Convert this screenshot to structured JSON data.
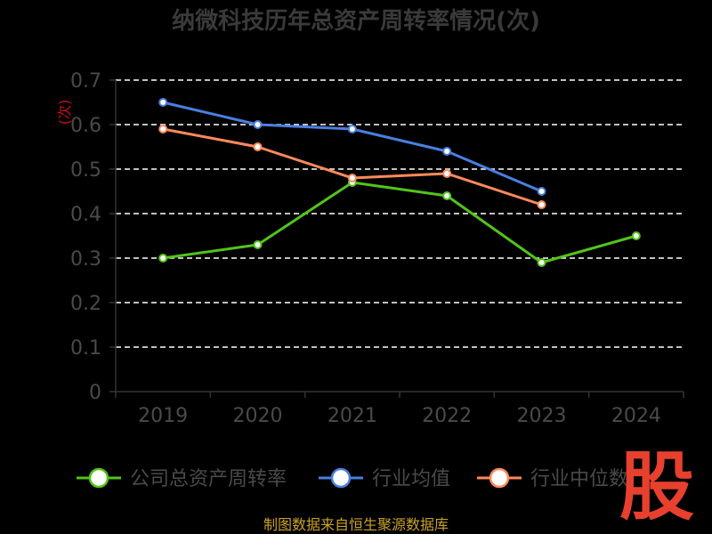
{
  "chart_data": {
    "type": "line",
    "title": "纳微科技历年总资产周转率情况(次)",
    "ylabel": "(次)",
    "xlabel": "",
    "categories": [
      "2019",
      "2020",
      "2021",
      "2022",
      "2023",
      "2024"
    ],
    "ylim": [
      0,
      0.7
    ],
    "yticks": [
      "0",
      "0.1",
      "0.2",
      "0.3",
      "0.4",
      "0.5",
      "0.6",
      "0.7"
    ],
    "grid": true,
    "legend_position": "bottom",
    "series": [
      {
        "name": "公司总资产周转率",
        "color": "#52c41a",
        "values": [
          0.3,
          0.33,
          0.47,
          0.44,
          0.29,
          0.35
        ]
      },
      {
        "name": "行业均值",
        "color": "#4a7fe0",
        "values": [
          0.65,
          0.6,
          0.59,
          0.54,
          0.45,
          null
        ]
      },
      {
        "name": "行业中位数",
        "color": "#ff8a5c",
        "values": [
          0.59,
          0.55,
          0.48,
          0.49,
          0.42,
          null
        ]
      }
    ]
  },
  "footer": {
    "source": "制图数据来自恒生聚源数据库"
  },
  "watermark": {
    "text": "股"
  }
}
